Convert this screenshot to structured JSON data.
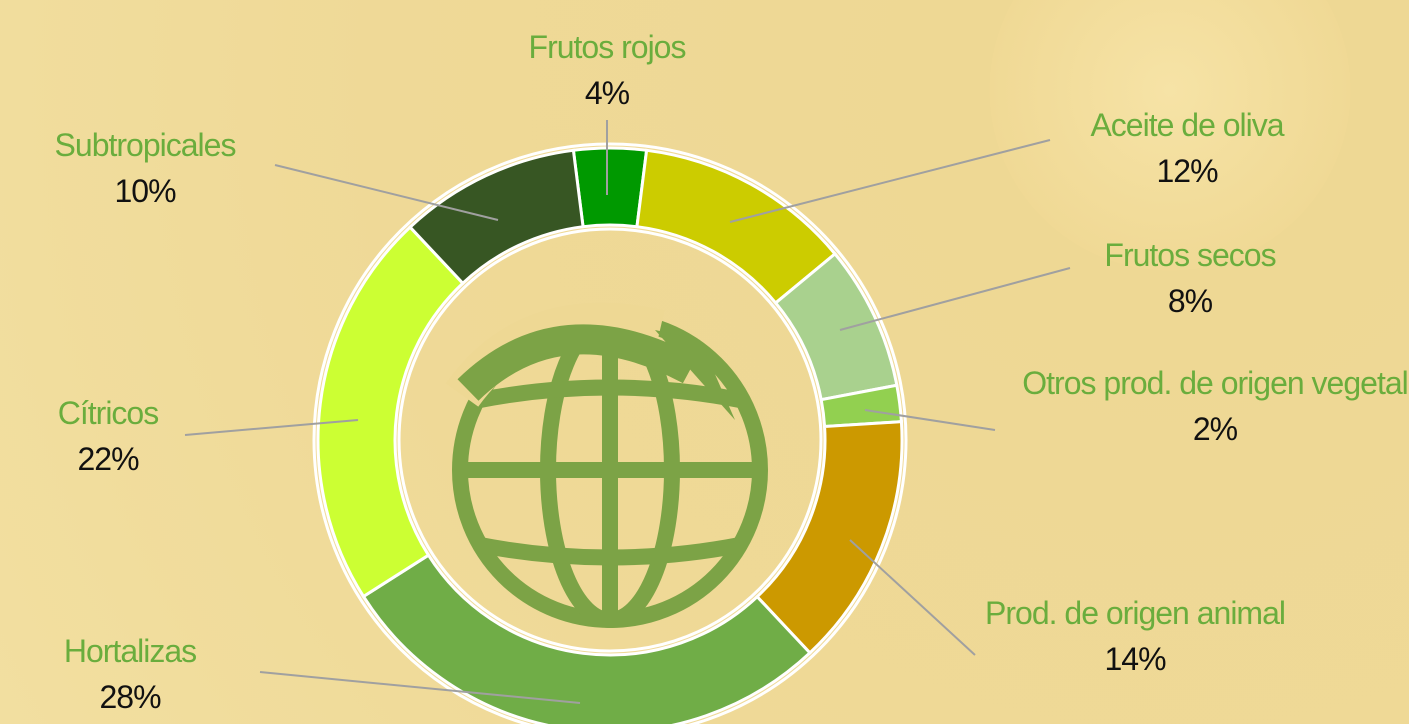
{
  "chart_data": {
    "type": "donut",
    "categories": [
      "Frutos rojos",
      "Aceite de oliva",
      "Frutos secos",
      "Otros prod. de origen vegetal",
      "Prod. de origen animal",
      "Hortalizas",
      "Cítricos",
      "Subtropicales"
    ],
    "values": [
      4,
      12,
      8,
      2,
      14,
      28,
      22,
      10
    ],
    "value_labels": [
      "4%",
      "12%",
      "8%",
      "2%",
      "14%",
      "28%",
      "22%",
      "10%"
    ],
    "colors": [
      "#009900",
      "#cccc00",
      "#a9d18e",
      "#92d050",
      "#cc9900",
      "#70ad47",
      "#ccff33",
      "#375623"
    ]
  }
}
